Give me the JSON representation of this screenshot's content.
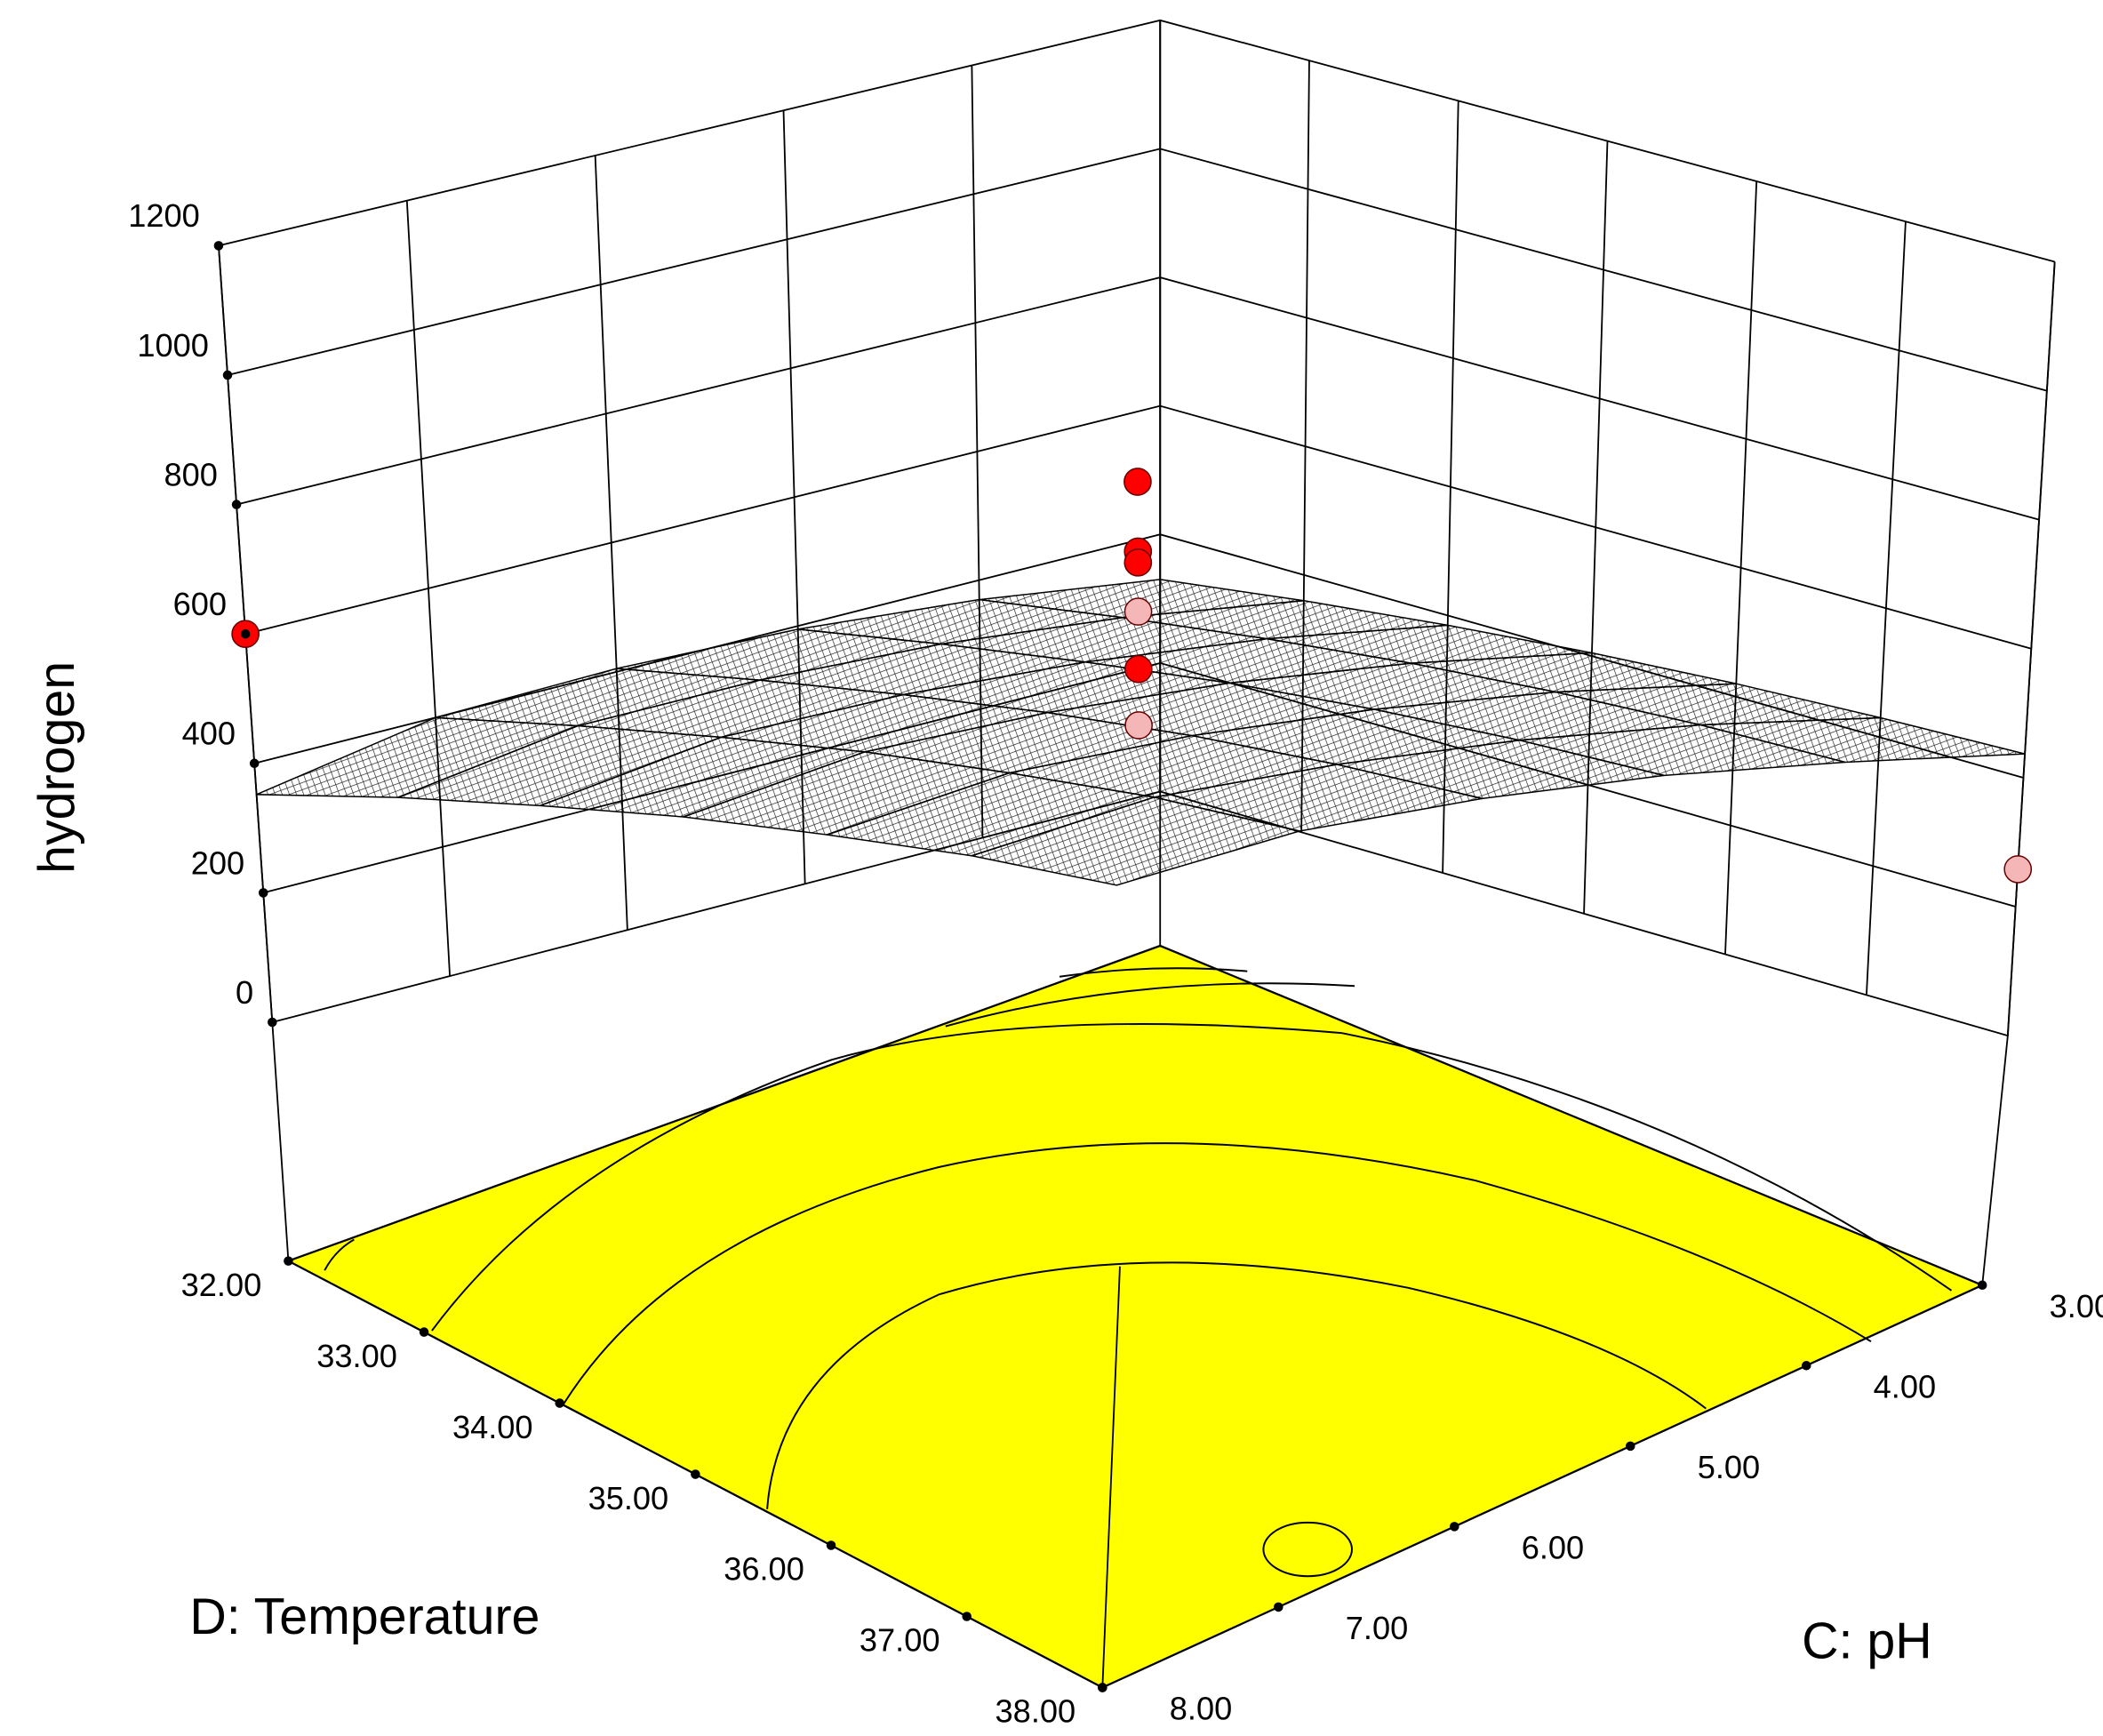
{
  "chart_data": {
    "type": "surface",
    "zlabel": "hydrogen",
    "xlabel": "D: Temperature",
    "ylabel": "C: pH",
    "x": [
      32,
      33,
      34,
      35,
      36,
      37,
      38
    ],
    "y": [
      3,
      4,
      5,
      6,
      7,
      8
    ],
    "values": [
      [
        330,
        360,
        385,
        405,
        420,
        430,
        437
      ],
      [
        370,
        405,
        435,
        460,
        478,
        490,
        495
      ],
      [
        395,
        435,
        470,
        500,
        522,
        537,
        545
      ],
      [
        405,
        450,
        490,
        525,
        552,
        570,
        580
      ],
      [
        400,
        450,
        495,
        535,
        565,
        590,
        600
      ],
      [
        352,
        410,
        460,
        505,
        540,
        570,
        587
      ]
    ],
    "xlim": [
      32,
      38
    ],
    "xticks": [
      {
        "value": 32,
        "label": "32.00"
      },
      {
        "value": 33,
        "label": "33.00"
      },
      {
        "value": 34,
        "label": "34.00"
      },
      {
        "value": 35,
        "label": "35.00"
      },
      {
        "value": 36,
        "label": "36.00"
      },
      {
        "value": 37,
        "label": "37.00"
      },
      {
        "value": 38,
        "label": "38.00"
      }
    ],
    "ylim": [
      3,
      8
    ],
    "yticks": [
      {
        "value": 3,
        "label": "3.00"
      },
      {
        "value": 4,
        "label": "4.00"
      },
      {
        "value": 5,
        "label": "5.00"
      },
      {
        "value": 6,
        "label": "6.00"
      },
      {
        "value": 7,
        "label": "7.00"
      },
      {
        "value": 8,
        "label": "8.00"
      }
    ],
    "zlim": [
      0,
      1200
    ],
    "zticks": [
      0,
      200,
      400,
      600,
      800,
      1000,
      1200
    ],
    "surface_color": "#000000",
    "floor_color": "#ffff00",
    "points": {
      "x": [
        32,
        38,
        35,
        35,
        35,
        35,
        35,
        35
      ],
      "y": [
        8,
        3,
        5.5,
        5.5,
        5.5,
        5.5,
        5.5,
        5.5
      ],
      "values": [
        600,
        258,
        847,
        739,
        722,
        646,
        557,
        470
      ],
      "colors": [
        "#ff0000",
        "#f4b6b6",
        "#ff0000",
        "#ff0000",
        "#ff0000",
        "#f4b6b6",
        "#ff0000",
        "#f4b6b6"
      ]
    }
  }
}
